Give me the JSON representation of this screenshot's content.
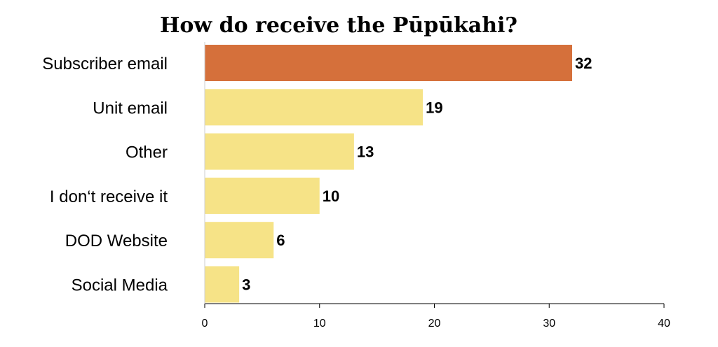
{
  "chart_data": {
    "type": "bar",
    "orientation": "horizontal",
    "title": "How do receive the Pūpūkahi?",
    "categories": [
      "Subscriber email",
      "Unit email",
      "Other",
      "I don‘t receive it",
      "DOD Website",
      "Social Media"
    ],
    "values": [
      32,
      19,
      13,
      10,
      6,
      3
    ],
    "value_labels": [
      "32",
      "19",
      "13",
      "10",
      "6",
      "3"
    ],
    "xlim": [
      0,
      40
    ],
    "xticks": [
      0,
      10,
      20,
      30,
      40
    ],
    "xtick_labels": [
      "0",
      "10",
      "20",
      "30",
      "40"
    ],
    "grid": false,
    "legend": "none",
    "colors": {
      "highlight": "#d5703b",
      "default": "#f6e387",
      "axis": "#000000"
    },
    "highlight_index": 0
  }
}
